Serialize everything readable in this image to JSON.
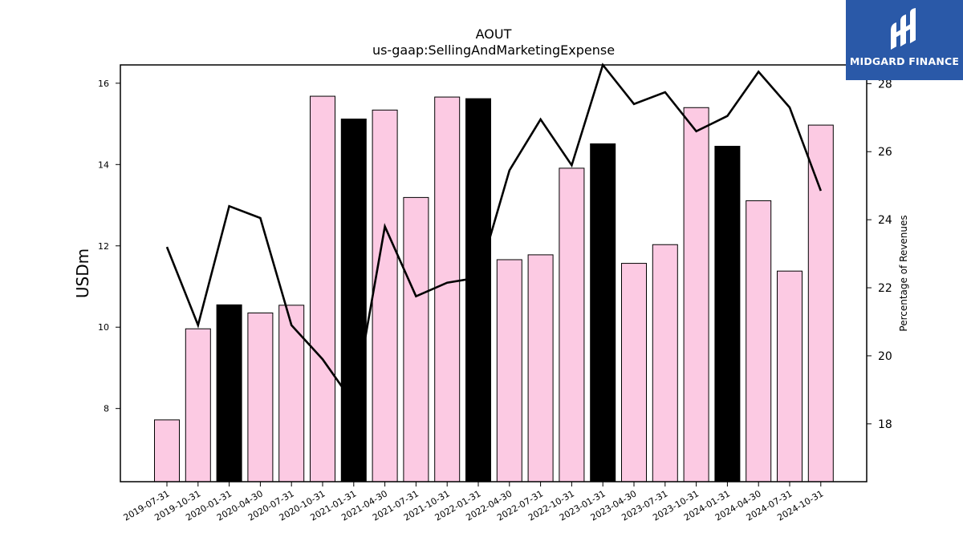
{
  "brand": {
    "name": "MIDGARD FINANCE",
    "bg_color": "#2a59a8"
  },
  "chart_data": {
    "type": "bar",
    "title": "AOUT",
    "subtitle": "us-gaap:SellingAndMarketingExpense",
    "ylabel": "USDm",
    "y2label": "Percentage of Revenues",
    "ylim": [
      6.2,
      16.45
    ],
    "y2lim": [
      16.3,
      28.55
    ],
    "yticks": [
      8,
      10,
      12,
      14,
      16
    ],
    "y2ticks": [
      18,
      20,
      22,
      24,
      26,
      28
    ],
    "categories": [
      "2019-07-31",
      "2019-10-31",
      "2020-01-31",
      "2020-04-30",
      "2020-07-31",
      "2020-10-31",
      "2021-01-31",
      "2021-04-30",
      "2021-07-31",
      "2021-10-31",
      "2022-01-31",
      "2022-04-30",
      "2022-07-31",
      "2022-10-31",
      "2023-01-31",
      "2023-04-30",
      "2023-07-31",
      "2023-10-31",
      "2024-01-31",
      "2024-04-30",
      "2024-07-31",
      "2024-10-31"
    ],
    "series": [
      {
        "type": "bar",
        "values": [
          7.72,
          9.96,
          10.55,
          10.35,
          10.54,
          15.68,
          15.12,
          15.34,
          13.19,
          15.66,
          15.62,
          11.66,
          11.78,
          13.91,
          14.51,
          11.57,
          12.03,
          15.4,
          14.45,
          13.11,
          11.38,
          14.97
        ],
        "highlighted": [
          false,
          false,
          true,
          false,
          false,
          false,
          true,
          false,
          false,
          false,
          true,
          false,
          false,
          false,
          true,
          false,
          false,
          false,
          true,
          false,
          false,
          false
        ]
      },
      {
        "type": "line",
        "axis": "right",
        "values": [
          23.2,
          20.9,
          24.4,
          24.05,
          20.9,
          19.9,
          18.6,
          23.8,
          21.75,
          22.15,
          22.3,
          25.45,
          26.95,
          25.6,
          28.55,
          27.4,
          27.75,
          26.6,
          27.05,
          28.35,
          27.3,
          24.85
        ]
      }
    ],
    "colors": {
      "bar": "#fccae3",
      "bar_highlight": "#000000",
      "line": "#000000"
    },
    "grid": false,
    "legend": "none"
  }
}
